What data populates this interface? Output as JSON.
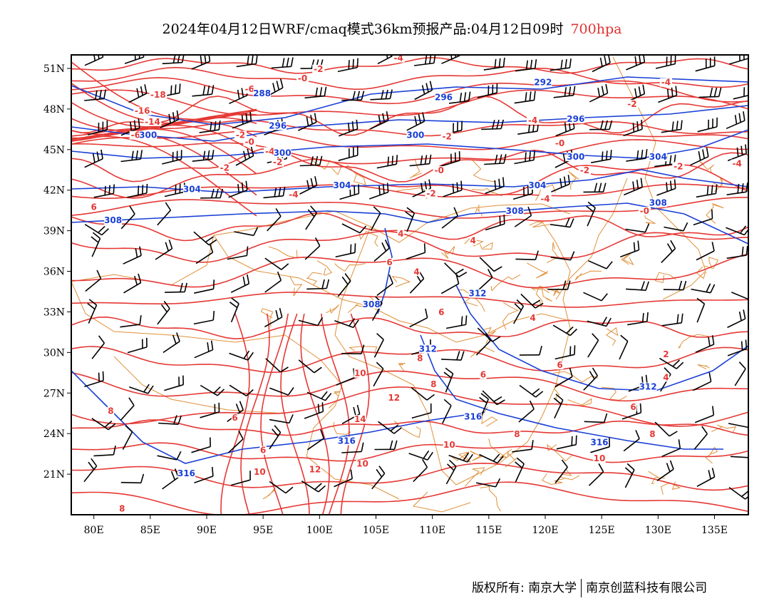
{
  "title": {
    "text": "2024年04月12日WRF/cmaq模式36km预报产品:04月12日09时",
    "level": "700hpa"
  },
  "colors": {
    "temperature": "#e53935",
    "geopotential": "#1a3fd6",
    "boundary": "#e0903a",
    "wind": "#000000",
    "frame": "#000000"
  },
  "map": {
    "type": "lat-lon weather map",
    "lon_range": [
      78,
      138
    ],
    "lat_range": [
      18,
      52
    ],
    "lon_ticks": [
      "80E",
      "85E",
      "90E",
      "95E",
      "100E",
      "105E",
      "110E",
      "115E",
      "120E",
      "125E",
      "130E",
      "135E"
    ],
    "lat_ticks": [
      "21N",
      "24N",
      "27N",
      "30N",
      "33N",
      "36N",
      "39N",
      "42N",
      "45N",
      "48N",
      "51N"
    ]
  },
  "temperature_labels": [
    {
      "text": "-18",
      "lon": 85.7,
      "lat": 48.9
    },
    {
      "text": "-16",
      "lon": 84.3,
      "lat": 47.7
    },
    {
      "text": "-14",
      "lon": 85.2,
      "lat": 46.9
    },
    {
      "text": "-6",
      "lon": 83.7,
      "lat": 45.9
    },
    {
      "text": "-4",
      "lon": 107.0,
      "lat": 51.6
    },
    {
      "text": "-2",
      "lon": 99.9,
      "lat": 50.8
    },
    {
      "text": "-6",
      "lon": 93.8,
      "lat": 49.3
    },
    {
      "text": "-2",
      "lon": 93.0,
      "lat": 45.9
    },
    {
      "text": "-0",
      "lon": 93.8,
      "lat": 45.4
    },
    {
      "text": "-2",
      "lon": 96.3,
      "lat": 43.9
    },
    {
      "text": "-4",
      "lon": 95.6,
      "lat": 44.7
    },
    {
      "text": "-2",
      "lon": 91.6,
      "lat": 43.5
    },
    {
      "text": "-0",
      "lon": 98.5,
      "lat": 50.1
    },
    {
      "text": "-2",
      "lon": 111.3,
      "lat": 45.8
    },
    {
      "text": "-0",
      "lon": 110.6,
      "lat": 43.3
    },
    {
      "text": "-2",
      "lon": 109.9,
      "lat": 41.6
    },
    {
      "text": "-4",
      "lon": 97.7,
      "lat": 41.5
    },
    {
      "text": "-4",
      "lon": 118.9,
      "lat": 47.0
    },
    {
      "text": "-0",
      "lon": 121.3,
      "lat": 45.3
    },
    {
      "text": "-2",
      "lon": 123.5,
      "lat": 43.3
    },
    {
      "text": "-4",
      "lon": 120.0,
      "lat": 41.2
    },
    {
      "text": "-2",
      "lon": 127.7,
      "lat": 48.2
    },
    {
      "text": "-4",
      "lon": 130.7,
      "lat": 49.8
    },
    {
      "text": "-2",
      "lon": 131.8,
      "lat": 43.6
    },
    {
      "text": "-4",
      "lon": 137.0,
      "lat": 43.8
    },
    {
      "text": "-0",
      "lon": 128.8,
      "lat": 40.3
    },
    {
      "text": "6",
      "lon": 80.0,
      "lat": 40.6
    },
    {
      "text": "4",
      "lon": 107.2,
      "lat": 38.6
    },
    {
      "text": "4",
      "lon": 113.6,
      "lat": 38.1
    },
    {
      "text": "6",
      "lon": 106.2,
      "lat": 36.5
    },
    {
      "text": "4",
      "lon": 108.6,
      "lat": 35.8
    },
    {
      "text": "6",
      "lon": 110.8,
      "lat": 32.8
    },
    {
      "text": "4",
      "lon": 118.9,
      "lat": 32.4
    },
    {
      "text": "2",
      "lon": 130.7,
      "lat": 29.7
    },
    {
      "text": "4",
      "lon": 130.7,
      "lat": 28.0
    },
    {
      "text": "6",
      "lon": 121.3,
      "lat": 28.9
    },
    {
      "text": "8",
      "lon": 108.9,
      "lat": 29.4
    },
    {
      "text": "6",
      "lon": 114.5,
      "lat": 28.2
    },
    {
      "text": "8",
      "lon": 110.1,
      "lat": 27.5
    },
    {
      "text": "10",
      "lon": 103.6,
      "lat": 28.3
    },
    {
      "text": "12",
      "lon": 106.6,
      "lat": 26.5
    },
    {
      "text": "14",
      "lon": 103.6,
      "lat": 24.9
    },
    {
      "text": "12",
      "lon": 99.6,
      "lat": 21.2
    },
    {
      "text": "10",
      "lon": 103.8,
      "lat": 21.6
    },
    {
      "text": "10",
      "lon": 111.5,
      "lat": 23.0
    },
    {
      "text": "8",
      "lon": 117.5,
      "lat": 23.8
    },
    {
      "text": "10",
      "lon": 124.8,
      "lat": 22.0
    },
    {
      "text": "6",
      "lon": 95.0,
      "lat": 22.6
    },
    {
      "text": "6",
      "lon": 92.5,
      "lat": 25.0
    },
    {
      "text": "8",
      "lon": 81.5,
      "lat": 25.5
    },
    {
      "text": "10",
      "lon": 94.7,
      "lat": 21.0
    },
    {
      "text": "6",
      "lon": 127.8,
      "lat": 25.8
    },
    {
      "text": "8",
      "lon": 129.5,
      "lat": 23.8
    },
    {
      "text": "8",
      "lon": 82.5,
      "lat": 18.3
    }
  ],
  "height_labels": [
    {
      "text": "288",
      "lon": 94.9,
      "lat": 49.0
    },
    {
      "text": "296",
      "lon": 96.3,
      "lat": 46.6
    },
    {
      "text": "300",
      "lon": 84.8,
      "lat": 45.9
    },
    {
      "text": "296",
      "lon": 111.0,
      "lat": 48.7
    },
    {
      "text": "292",
      "lon": 119.8,
      "lat": 49.8
    },
    {
      "text": "296",
      "lon": 122.7,
      "lat": 47.1
    },
    {
      "text": "300",
      "lon": 108.5,
      "lat": 45.9
    },
    {
      "text": "300",
      "lon": 96.7,
      "lat": 44.6
    },
    {
      "text": "300",
      "lon": 122.7,
      "lat": 44.3
    },
    {
      "text": "304",
      "lon": 88.7,
      "lat": 41.9
    },
    {
      "text": "304",
      "lon": 102.0,
      "lat": 42.2
    },
    {
      "text": "304",
      "lon": 119.3,
      "lat": 42.2
    },
    {
      "text": "304",
      "lon": 130.0,
      "lat": 44.3
    },
    {
      "text": "308",
      "lon": 81.7,
      "lat": 39.6
    },
    {
      "text": "308",
      "lon": 117.3,
      "lat": 40.3
    },
    {
      "text": "308",
      "lon": 130.0,
      "lat": 40.9
    },
    {
      "text": "308",
      "lon": 104.6,
      "lat": 33.4
    },
    {
      "text": "312",
      "lon": 114.0,
      "lat": 34.2
    },
    {
      "text": "312",
      "lon": 109.6,
      "lat": 30.1
    },
    {
      "text": "312",
      "lon": 129.1,
      "lat": 27.3
    },
    {
      "text": "316",
      "lon": 113.6,
      "lat": 25.1
    },
    {
      "text": "316",
      "lon": 124.8,
      "lat": 23.2
    },
    {
      "text": "316",
      "lon": 102.4,
      "lat": 23.3
    },
    {
      "text": "316",
      "lon": 88.2,
      "lat": 20.9
    }
  ],
  "footer": {
    "copyright": "版权所有: 南京大学",
    "company": "南京创蓝科技有限公司"
  }
}
